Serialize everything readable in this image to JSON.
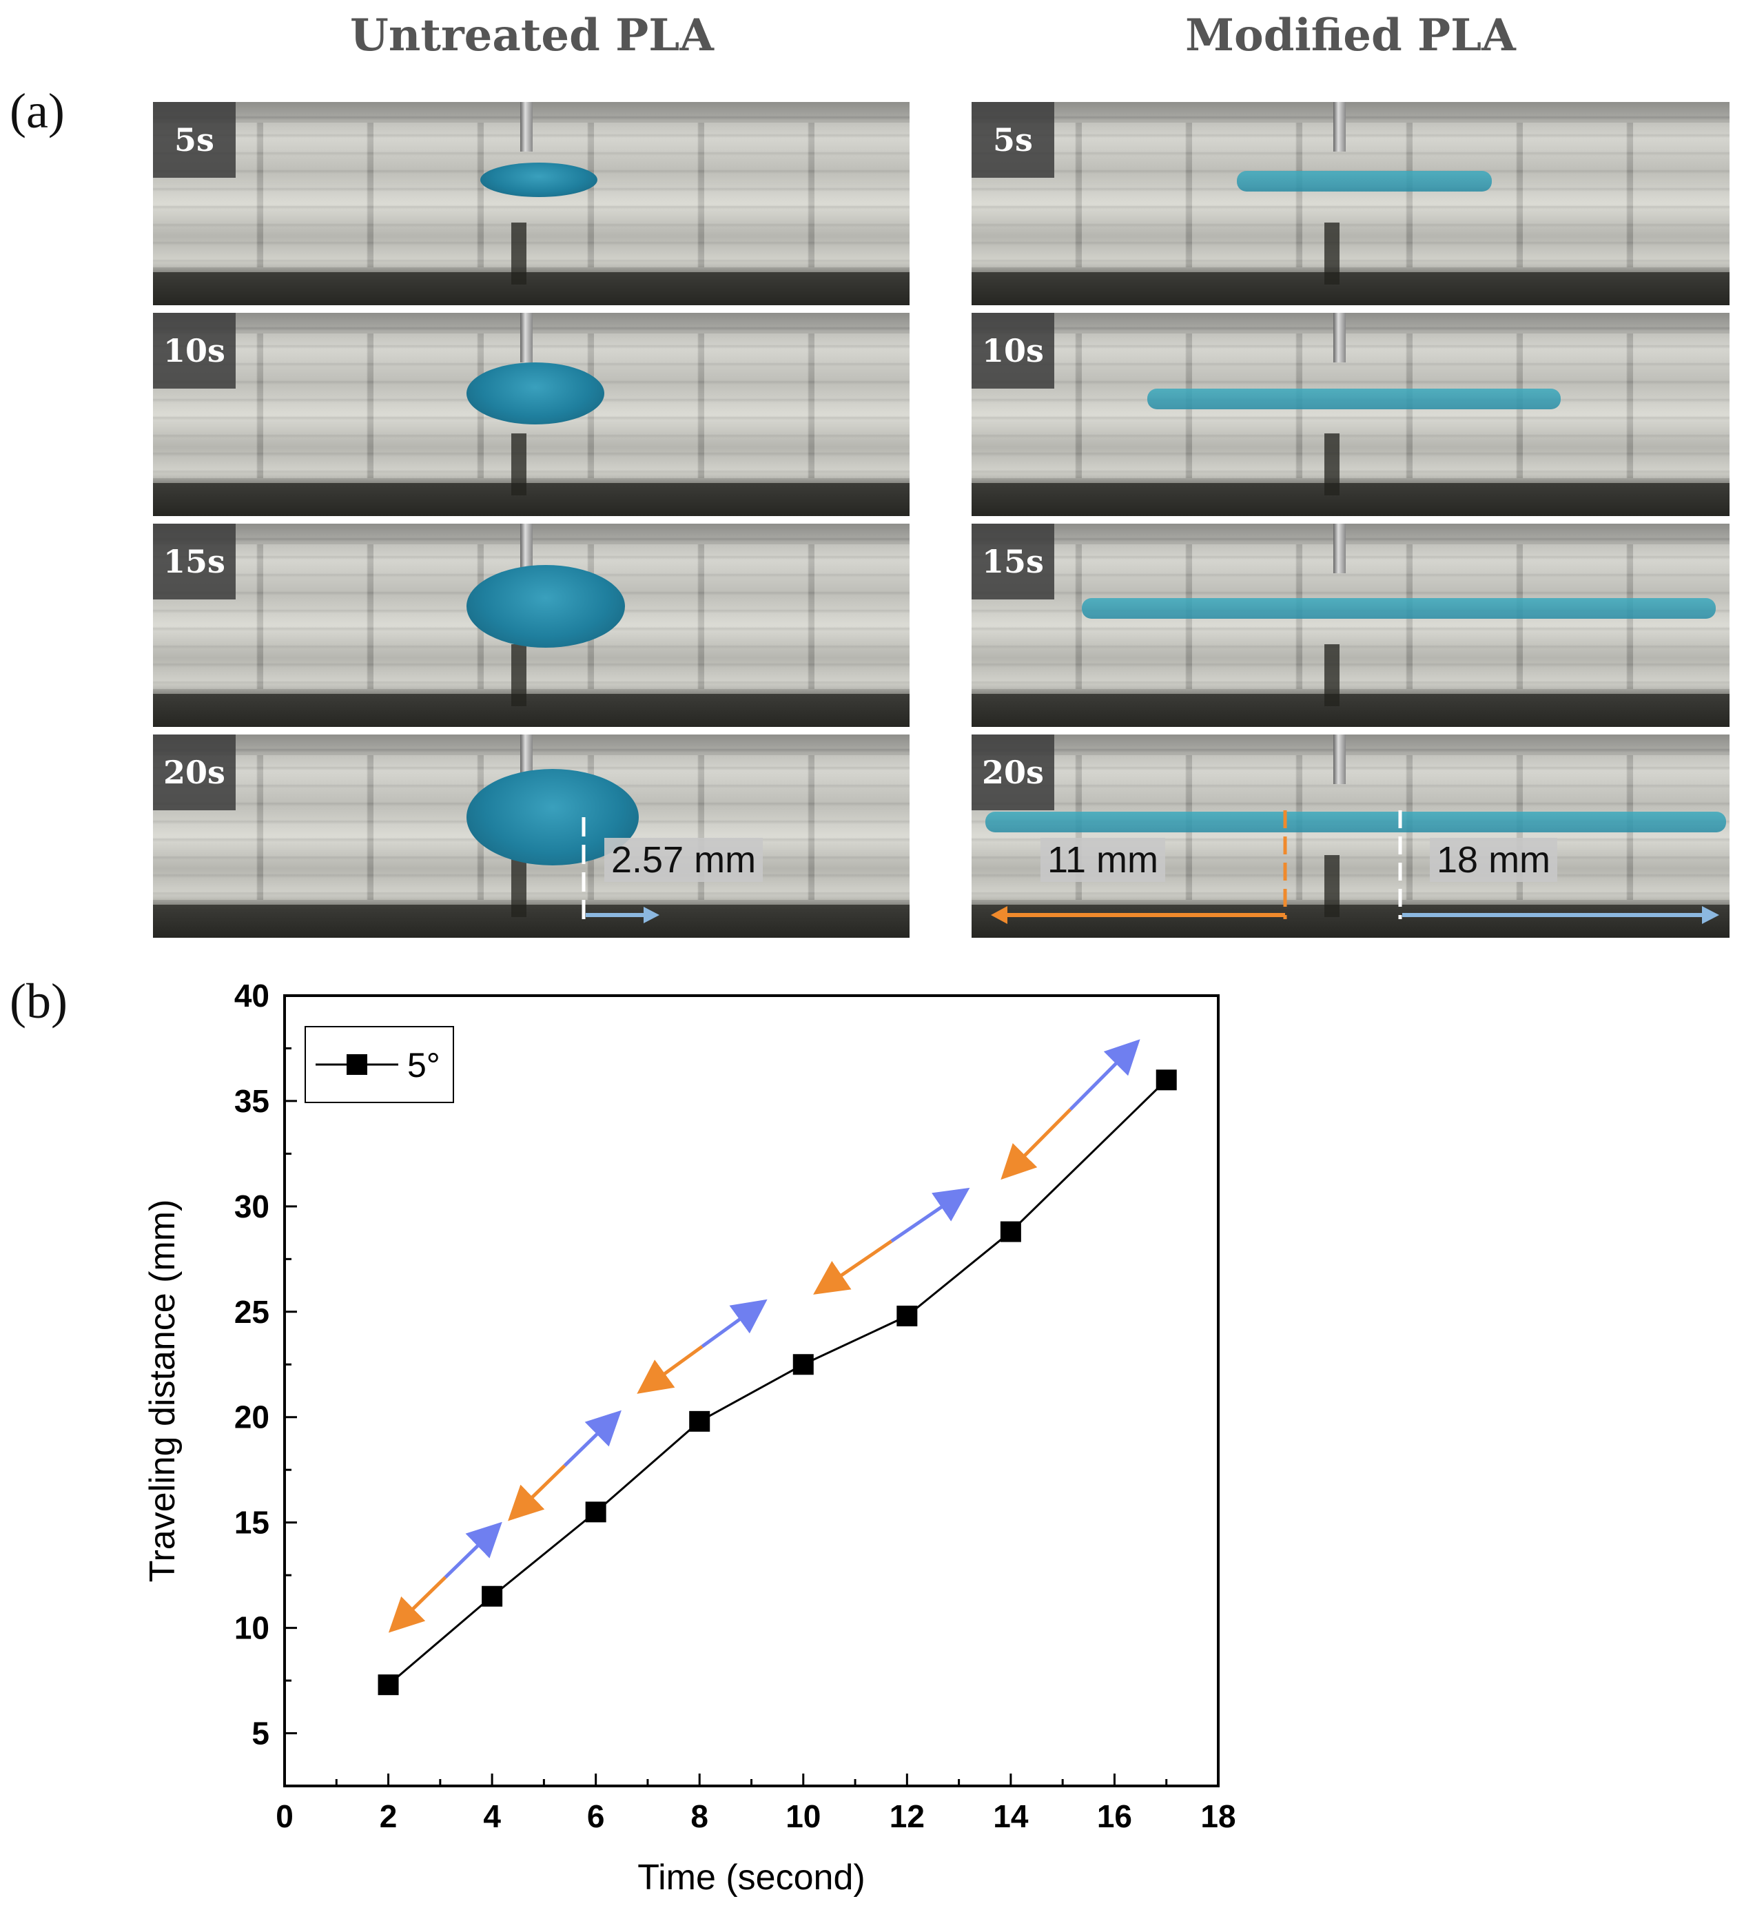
{
  "figure": {
    "panel_a_label": "(a)",
    "panel_b_label": "(b)",
    "column_titles": [
      "Untreated PLA",
      "Modified PLA"
    ],
    "time_tags": [
      "5s",
      "10s",
      "15s",
      "20s"
    ],
    "measurements": {
      "untreated": "2.57 mm",
      "modified_left": "11 mm",
      "modified_right": "18 mm"
    },
    "colors": {
      "droplet": "#1f7f9e",
      "orange_arrow": "#f08a2c",
      "blue_arrow": "#8cb8e0",
      "chart_blue_arrow": "#6f7ff0"
    }
  },
  "chart_data": {
    "type": "line",
    "xlabel": "Time (second)",
    "ylabel": "Traveling distance (mm)",
    "xlim": [
      0,
      18
    ],
    "ylim": [
      2.5,
      40
    ],
    "xticks": [
      0,
      2,
      4,
      6,
      8,
      10,
      12,
      14,
      16,
      18
    ],
    "yticks": [
      5,
      10,
      15,
      20,
      25,
      30,
      35,
      40
    ],
    "legend": {
      "placement": "top-left",
      "entries": [
        "5°"
      ]
    },
    "series": [
      {
        "name": "5°",
        "marker": "square",
        "color": "#000000",
        "x": [
          2,
          4,
          6,
          8,
          10,
          12,
          14,
          17
        ],
        "values": [
          7.3,
          11.5,
          15.5,
          19.8,
          22.5,
          24.8,
          28.8,
          36.0
        ]
      }
    ],
    "annotations": [
      {
        "type": "double-arrow",
        "from": [
          2.1,
          10.0
        ],
        "to": [
          4.1,
          14.8
        ]
      },
      {
        "type": "double-arrow",
        "from": [
          4.4,
          15.3
        ],
        "to": [
          6.4,
          20.1
        ]
      },
      {
        "type": "double-arrow",
        "from": [
          6.9,
          21.3
        ],
        "to": [
          9.2,
          25.4
        ]
      },
      {
        "type": "double-arrow",
        "from": [
          10.3,
          26.0
        ],
        "to": [
          13.1,
          30.7
        ]
      },
      {
        "type": "double-arrow",
        "from": [
          13.9,
          31.5
        ],
        "to": [
          16.4,
          37.7
        ]
      }
    ]
  }
}
